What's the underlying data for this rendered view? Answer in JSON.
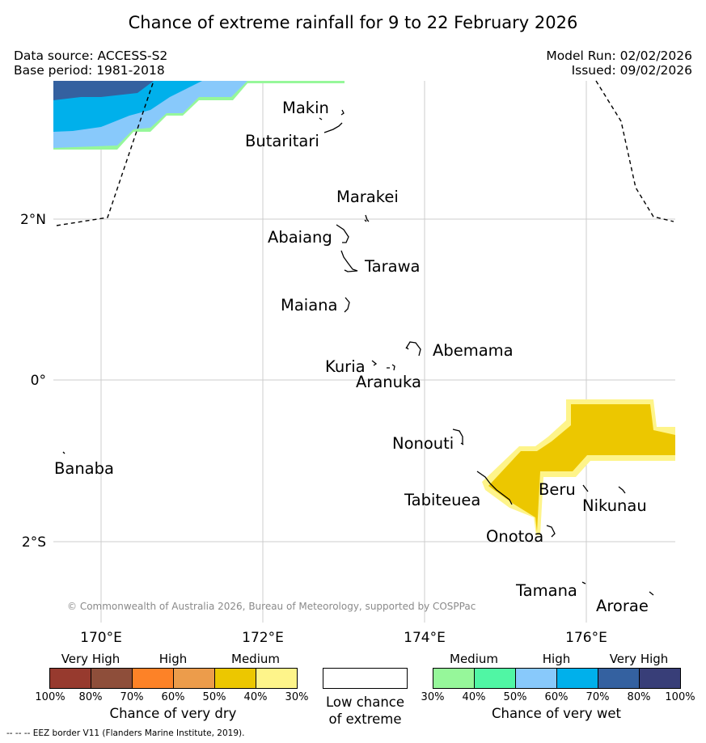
{
  "header": {
    "title": "Chance of extreme rainfall for 9 to 22 February 2026",
    "data_source": "Data source: ACCESS-S2",
    "base_period": "Base period: 1981-2018",
    "model_run": "Model Run: 02/02/2026",
    "issued": "Issued: 09/02/2026"
  },
  "map": {
    "lat_labels": [
      "2°N",
      "0°",
      "2°S"
    ],
    "lon_labels": [
      "170°E",
      "172°E",
      "174°E",
      "176°E"
    ],
    "places": [
      "Makin",
      "Butaritari",
      "Marakei",
      "Abaiang",
      "Tarawa",
      "Maiana",
      "Abemama",
      "Kuria",
      "Aranuka",
      "Nonouti",
      "Banaba",
      "Tabiteuea",
      "Beru",
      "Nikunau",
      "Onotoa",
      "Tamana",
      "Arorae"
    ],
    "copyright": "© Commonwealth of Australia 2026, Bureau of Meteorology, supported by COSPPac"
  },
  "legend": {
    "dry": {
      "headers": [
        "Very High",
        "High",
        "Medium"
      ],
      "ticks": [
        "100%",
        "80%",
        "70%",
        "60%",
        "50%",
        "40%",
        "30%"
      ],
      "colors": [
        "#973a2e",
        "#8e4e3a",
        "#fd8227",
        "#ec9c4b",
        "#ecc700",
        "#fef48a"
      ],
      "caption": "Chance of very dry"
    },
    "neutral": {
      "label_line1": "Low chance",
      "label_line2": "of extreme",
      "color": "#ffffff"
    },
    "wet": {
      "headers": [
        "Medium",
        "High",
        "Very High"
      ],
      "ticks": [
        "30%",
        "40%",
        "50%",
        "60%",
        "70%",
        "80%",
        "100%"
      ],
      "colors": [
        "#96f79a",
        "#50f6a4",
        "#88c9fb",
        "#00b0eb",
        "#3461a0",
        "#383e78"
      ],
      "caption": "Chance of very wet"
    }
  },
  "footer": {
    "eez_note": "--  --  -- EEZ border V11 (Flanders Marine Institute, 2019)."
  }
}
